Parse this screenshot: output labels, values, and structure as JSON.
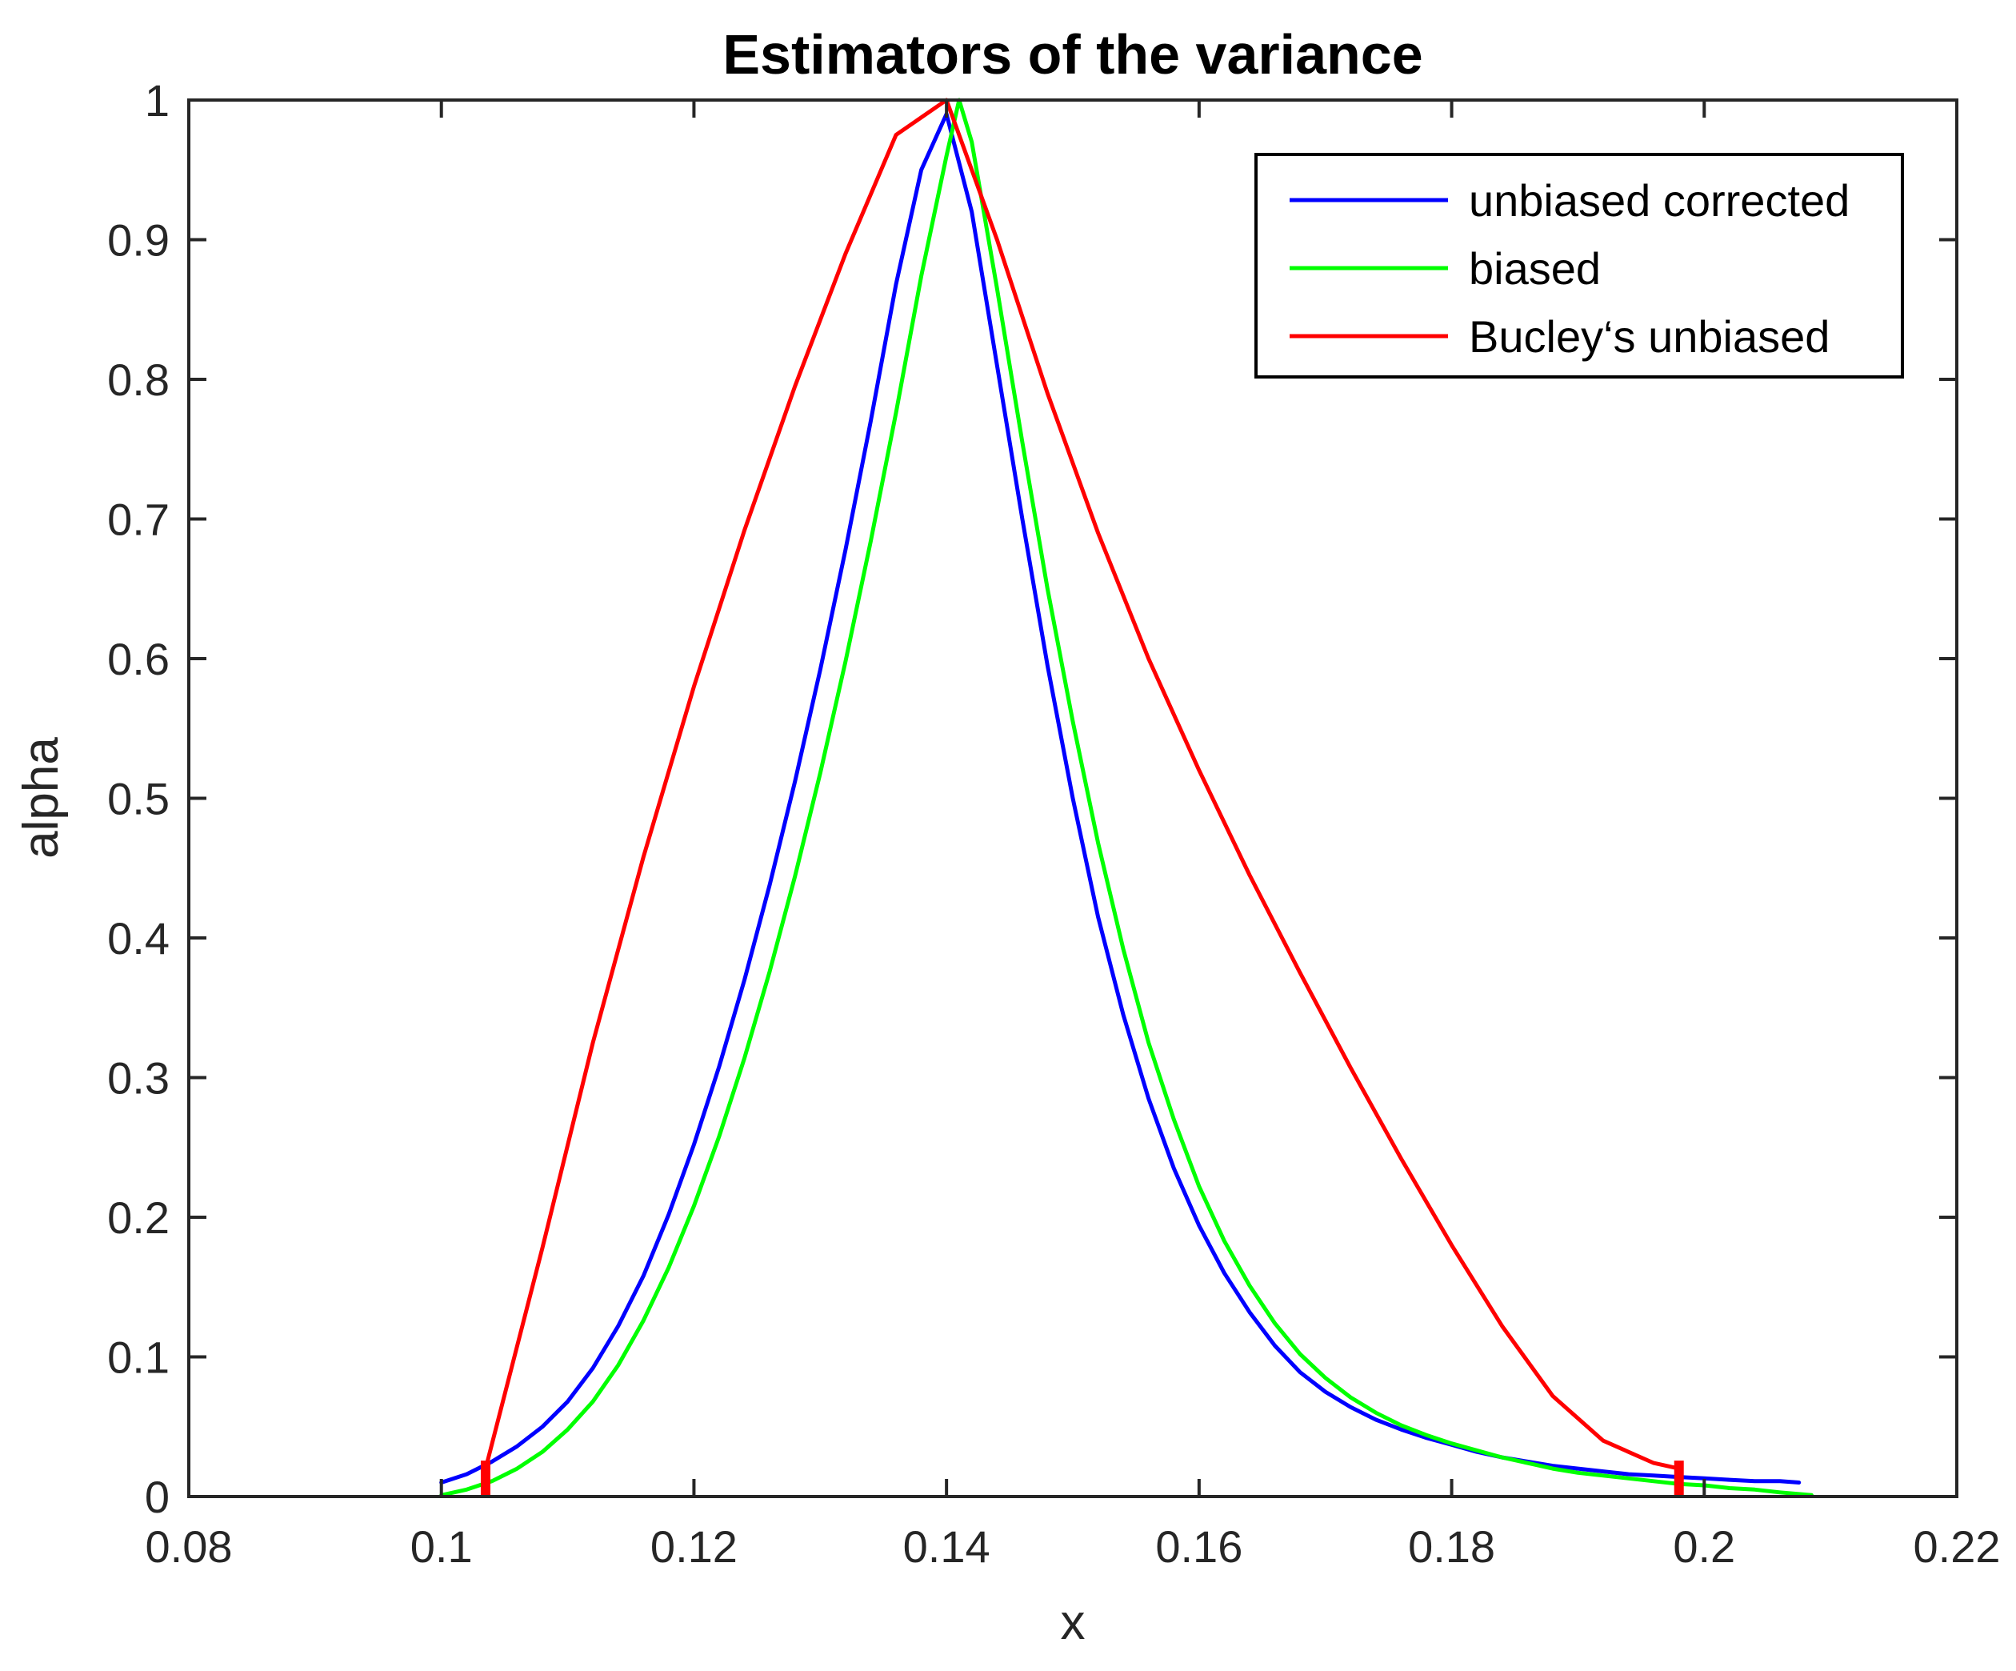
{
  "chart_data": {
    "type": "line",
    "title": "Estimators of the variance",
    "xlabel": "x",
    "ylabel": "alpha",
    "xlim": [
      0.08,
      0.22
    ],
    "ylim": [
      0,
      1
    ],
    "xticks": [
      0.08,
      0.1,
      0.12,
      0.14,
      0.16,
      0.18,
      0.2,
      0.22
    ],
    "xtick_labels": [
      "0.08",
      "0.1",
      "0.12",
      "0.14",
      "0.16",
      "0.18",
      "0.2",
      "0.22"
    ],
    "yticks": [
      0,
      0.1,
      0.2,
      0.3,
      0.4,
      0.5,
      0.6,
      0.7,
      0.8,
      0.9,
      1
    ],
    "ytick_labels": [
      "0",
      "0.1",
      "0.2",
      "0.3",
      "0.4",
      "0.5",
      "0.6",
      "0.7",
      "0.8",
      "0.9",
      "1"
    ],
    "grid": false,
    "legend_position": "top-right",
    "series": [
      {
        "name": "unbiased corrected",
        "color": "#0000ff",
        "x": [
          0.1,
          0.102,
          0.104,
          0.106,
          0.108,
          0.11,
          0.112,
          0.114,
          0.116,
          0.118,
          0.12,
          0.122,
          0.124,
          0.126,
          0.128,
          0.13,
          0.132,
          0.134,
          0.136,
          0.138,
          0.14,
          0.142,
          0.144,
          0.146,
          0.148,
          0.15,
          0.152,
          0.154,
          0.156,
          0.158,
          0.16,
          0.162,
          0.164,
          0.166,
          0.168,
          0.17,
          0.172,
          0.174,
          0.176,
          0.178,
          0.18,
          0.182,
          0.184,
          0.186,
          0.188,
          0.19,
          0.192,
          0.194,
          0.196,
          0.198,
          0.2,
          0.202,
          0.204,
          0.206,
          0.2075
        ],
        "y": [
          0.01,
          0.016,
          0.025,
          0.036,
          0.05,
          0.068,
          0.092,
          0.122,
          0.158,
          0.202,
          0.252,
          0.308,
          0.37,
          0.438,
          0.512,
          0.592,
          0.678,
          0.77,
          0.868,
          0.95,
          0.99,
          0.92,
          0.81,
          0.7,
          0.595,
          0.5,
          0.415,
          0.345,
          0.285,
          0.235,
          0.194,
          0.16,
          0.132,
          0.108,
          0.089,
          0.075,
          0.064,
          0.055,
          0.048,
          0.042,
          0.037,
          0.032,
          0.028,
          0.025,
          0.022,
          0.02,
          0.018,
          0.016,
          0.015,
          0.014,
          0.013,
          0.012,
          0.011,
          0.011,
          0.01
        ]
      },
      {
        "name": "biased",
        "color": "#00ff00",
        "x": [
          0.1,
          0.102,
          0.104,
          0.106,
          0.108,
          0.11,
          0.112,
          0.114,
          0.116,
          0.118,
          0.12,
          0.122,
          0.124,
          0.126,
          0.128,
          0.13,
          0.132,
          0.134,
          0.136,
          0.138,
          0.14,
          0.141,
          0.142,
          0.144,
          0.146,
          0.148,
          0.15,
          0.152,
          0.154,
          0.156,
          0.158,
          0.16,
          0.162,
          0.164,
          0.166,
          0.168,
          0.17,
          0.172,
          0.174,
          0.176,
          0.178,
          0.18,
          0.182,
          0.184,
          0.186,
          0.188,
          0.19,
          0.192,
          0.194,
          0.196,
          0.198,
          0.2,
          0.202,
          0.204,
          0.206,
          0.2085
        ],
        "y": [
          0.001,
          0.005,
          0.011,
          0.02,
          0.032,
          0.048,
          0.068,
          0.094,
          0.126,
          0.164,
          0.208,
          0.258,
          0.314,
          0.376,
          0.444,
          0.518,
          0.598,
          0.684,
          0.776,
          0.874,
          0.96,
          1.0,
          0.97,
          0.865,
          0.755,
          0.65,
          0.555,
          0.468,
          0.392,
          0.325,
          0.27,
          0.222,
          0.183,
          0.151,
          0.124,
          0.102,
          0.085,
          0.071,
          0.06,
          0.051,
          0.044,
          0.038,
          0.033,
          0.028,
          0.024,
          0.02,
          0.017,
          0.015,
          0.013,
          0.011,
          0.009,
          0.008,
          0.006,
          0.005,
          0.003,
          0.001
        ]
      },
      {
        "name": "Bucley‘s unbiased",
        "color": "#ff0000",
        "x": [
          0.1035,
          0.108,
          0.112,
          0.116,
          0.12,
          0.124,
          0.128,
          0.132,
          0.136,
          0.14,
          0.144,
          0.148,
          0.152,
          0.156,
          0.16,
          0.164,
          0.168,
          0.172,
          0.176,
          0.18,
          0.184,
          0.188,
          0.192,
          0.196,
          0.198
        ],
        "y": [
          0.02,
          0.178,
          0.325,
          0.458,
          0.58,
          0.692,
          0.795,
          0.89,
          0.975,
          1.0,
          0.9,
          0.79,
          0.69,
          0.6,
          0.52,
          0.445,
          0.375,
          0.307,
          0.242,
          0.18,
          0.122,
          0.072,
          0.04,
          0.024,
          0.02
        ]
      }
    ],
    "markers": {
      "name": "interval bounds",
      "color": "#ff0000",
      "x": [
        0.1035,
        0.198
      ],
      "y_from": 0,
      "y_to": 0.02
    }
  }
}
